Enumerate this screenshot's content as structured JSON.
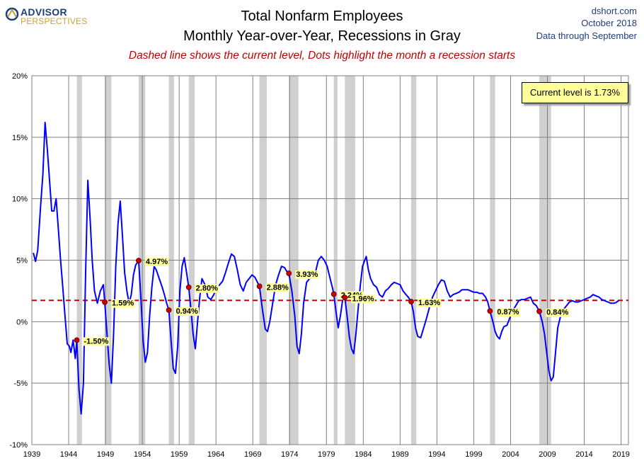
{
  "header": {
    "logo_top": "ADVISOR",
    "logo_bottom": "PERSPECTIVES",
    "title_line1": "Total Nonfarm Employees",
    "title_line2": "Monthly Year-over-Year, Recessions in Gray",
    "subtitle": "Dashed line shows the current level, Dots highlight the month a recession starts",
    "source": "dshort.com",
    "date": "October 2018",
    "data_through": "Data through September"
  },
  "current_level_label": "Current level is 1.73%",
  "colors": {
    "line": "#0000ff",
    "recession": "#d0d0d0",
    "dashed": "#cc0000",
    "dot": "#cc0000",
    "label_bg": "#ffff99",
    "title_blue": "#1f3f7a"
  },
  "chart_data": {
    "type": "line",
    "title": "Total Nonfarm Employees",
    "subtitle": "Monthly Year-over-Year, Recessions in Gray",
    "xlim": [
      1939,
      2020
    ],
    "ylim": [
      -10,
      20
    ],
    "x_ticks": [
      "1939",
      "1944",
      "1949",
      "1954",
      "1959",
      "1964",
      "1969",
      "1974",
      "1979",
      "1984",
      "1989",
      "1994",
      "1999",
      "2004",
      "2009",
      "2014",
      "2019"
    ],
    "y_ticks": [
      "-10%",
      "-5%",
      "0%",
      "5%",
      "10%",
      "15%",
      "20%"
    ],
    "y_tick_values": [
      -10,
      -5,
      0,
      5,
      10,
      15,
      20
    ],
    "grid": true,
    "current_level": 1.73,
    "recessions": [
      [
        1945.1,
        1945.8
      ],
      [
        1948.9,
        1949.8
      ],
      [
        1953.5,
        1954.4
      ],
      [
        1957.6,
        1958.3
      ],
      [
        1960.3,
        1961.1
      ],
      [
        1969.9,
        1970.9
      ],
      [
        1973.9,
        1975.2
      ],
      [
        1980.0,
        1980.5
      ],
      [
        1981.5,
        1982.9
      ],
      [
        1990.5,
        1991.2
      ],
      [
        2001.2,
        2001.9
      ],
      [
        2007.9,
        2009.5
      ]
    ],
    "recession_start_markers": [
      {
        "x": 1945.1,
        "y": -1.5,
        "label": "-1.50%"
      },
      {
        "x": 1948.9,
        "y": 1.59,
        "label": "1.59%"
      },
      {
        "x": 1953.5,
        "y": 4.97,
        "label": "4.97%"
      },
      {
        "x": 1957.6,
        "y": 0.94,
        "label": "0.94%"
      },
      {
        "x": 1960.3,
        "y": 2.8,
        "label": "2.80%"
      },
      {
        "x": 1969.9,
        "y": 2.88,
        "label": "2.88%"
      },
      {
        "x": 1973.9,
        "y": 3.93,
        "label": "3.93%"
      },
      {
        "x": 1980.0,
        "y": 2.24,
        "label": "2.24%"
      },
      {
        "x": 1981.5,
        "y": 1.96,
        "label": "1.96%"
      },
      {
        "x": 1990.5,
        "y": 1.63,
        "label": "1.63%"
      },
      {
        "x": 2001.2,
        "y": 0.87,
        "label": "0.87%"
      },
      {
        "x": 2007.9,
        "y": 0.84,
        "label": "0.84%"
      }
    ],
    "series": [
      {
        "values_xy": [
          [
            1939.2,
            5.6
          ],
          [
            1939.5,
            4.9
          ],
          [
            1939.8,
            5.8
          ],
          [
            1940.2,
            9.5
          ],
          [
            1940.5,
            12.0
          ],
          [
            1940.8,
            16.2
          ],
          [
            1941.1,
            14.0
          ],
          [
            1941.4,
            11.5
          ],
          [
            1941.7,
            9.0
          ],
          [
            1942.0,
            9.0
          ],
          [
            1942.3,
            10.0
          ],
          [
            1942.6,
            7.5
          ],
          [
            1942.9,
            5.0
          ],
          [
            1943.2,
            2.8
          ],
          [
            1943.5,
            0.5
          ],
          [
            1943.8,
            -1.8
          ],
          [
            1944.1,
            -2.0
          ],
          [
            1944.3,
            -2.5
          ],
          [
            1944.6,
            -1.5
          ],
          [
            1944.9,
            -3.0
          ],
          [
            1945.1,
            -1.5
          ],
          [
            1945.4,
            -5.5
          ],
          [
            1945.7,
            -7.5
          ],
          [
            1946.0,
            -5.0
          ],
          [
            1946.3,
            4.0
          ],
          [
            1946.6,
            11.5
          ],
          [
            1946.9,
            8.5
          ],
          [
            1947.2,
            5.0
          ],
          [
            1947.5,
            2.5
          ],
          [
            1947.9,
            1.5
          ],
          [
            1948.3,
            2.5
          ],
          [
            1948.7,
            3.0
          ],
          [
            1948.9,
            1.59
          ],
          [
            1949.2,
            -1.0
          ],
          [
            1949.5,
            -3.5
          ],
          [
            1949.8,
            -5.0
          ],
          [
            1950.1,
            -1.0
          ],
          [
            1950.4,
            4.5
          ],
          [
            1950.7,
            8.0
          ],
          [
            1951.0,
            9.8
          ],
          [
            1951.3,
            7.0
          ],
          [
            1951.6,
            4.0
          ],
          [
            1951.9,
            2.5
          ],
          [
            1952.2,
            1.5
          ],
          [
            1952.5,
            2.2
          ],
          [
            1952.8,
            3.8
          ],
          [
            1953.1,
            4.6
          ],
          [
            1953.5,
            4.97
          ],
          [
            1953.8,
            2.0
          ],
          [
            1954.1,
            -1.5
          ],
          [
            1954.4,
            -3.3
          ],
          [
            1954.7,
            -2.5
          ],
          [
            1955.0,
            0.5
          ],
          [
            1955.3,
            2.8
          ],
          [
            1955.6,
            4.5
          ],
          [
            1955.9,
            4.2
          ],
          [
            1956.3,
            3.5
          ],
          [
            1956.7,
            2.8
          ],
          [
            1957.0,
            2.2
          ],
          [
            1957.3,
            1.5
          ],
          [
            1957.6,
            0.94
          ],
          [
            1957.9,
            -1.5
          ],
          [
            1958.2,
            -3.8
          ],
          [
            1958.5,
            -4.2
          ],
          [
            1958.8,
            -2.0
          ],
          [
            1959.1,
            2.5
          ],
          [
            1959.4,
            4.5
          ],
          [
            1959.7,
            5.2
          ],
          [
            1960.0,
            4.0
          ],
          [
            1960.3,
            2.8
          ],
          [
            1960.6,
            1.0
          ],
          [
            1960.9,
            -1.0
          ],
          [
            1961.2,
            -2.2
          ],
          [
            1961.5,
            0.0
          ],
          [
            1961.8,
            2.0
          ],
          [
            1962.1,
            3.5
          ],
          [
            1962.5,
            3.0
          ],
          [
            1962.9,
            2.0
          ],
          [
            1963.3,
            1.8
          ],
          [
            1963.7,
            2.2
          ],
          [
            1964.1,
            2.8
          ],
          [
            1964.5,
            3.0
          ],
          [
            1964.9,
            3.3
          ],
          [
            1965.3,
            4.0
          ],
          [
            1965.7,
            4.8
          ],
          [
            1966.1,
            5.5
          ],
          [
            1966.5,
            5.3
          ],
          [
            1966.9,
            4.2
          ],
          [
            1967.3,
            3.0
          ],
          [
            1967.7,
            2.5
          ],
          [
            1968.1,
            3.2
          ],
          [
            1968.5,
            3.5
          ],
          [
            1968.9,
            3.8
          ],
          [
            1969.3,
            3.6
          ],
          [
            1969.9,
            2.88
          ],
          [
            1970.3,
            1.0
          ],
          [
            1970.7,
            -0.6
          ],
          [
            1971.0,
            -0.8
          ],
          [
            1971.3,
            0.0
          ],
          [
            1971.7,
            1.5
          ],
          [
            1972.1,
            3.0
          ],
          [
            1972.5,
            3.8
          ],
          [
            1972.9,
            4.5
          ],
          [
            1973.3,
            4.4
          ],
          [
            1973.6,
            4.1
          ],
          [
            1973.9,
            3.93
          ],
          [
            1974.3,
            2.5
          ],
          [
            1974.7,
            0.5
          ],
          [
            1975.0,
            -2.0
          ],
          [
            1975.3,
            -2.6
          ],
          [
            1975.6,
            -1.0
          ],
          [
            1975.9,
            1.5
          ],
          [
            1976.3,
            3.2
          ],
          [
            1976.7,
            3.5
          ],
          [
            1977.1,
            3.6
          ],
          [
            1977.5,
            4.0
          ],
          [
            1977.9,
            5.0
          ],
          [
            1978.3,
            5.3
          ],
          [
            1978.7,
            5.0
          ],
          [
            1979.1,
            4.5
          ],
          [
            1979.5,
            3.5
          ],
          [
            1979.8,
            2.8
          ],
          [
            1980.0,
            2.24
          ],
          [
            1980.3,
            0.8
          ],
          [
            1980.6,
            -0.5
          ],
          [
            1980.9,
            0.5
          ],
          [
            1981.2,
            1.8
          ],
          [
            1981.5,
            1.96
          ],
          [
            1981.8,
            0.5
          ],
          [
            1982.1,
            -1.2
          ],
          [
            1982.4,
            -2.2
          ],
          [
            1982.7,
            -2.6
          ],
          [
            1983.0,
            -1.0
          ],
          [
            1983.3,
            1.0
          ],
          [
            1983.6,
            3.0
          ],
          [
            1983.9,
            4.5
          ],
          [
            1984.2,
            5.0
          ],
          [
            1984.4,
            5.3
          ],
          [
            1984.7,
            4.2
          ],
          [
            1985.0,
            3.5
          ],
          [
            1985.4,
            3.0
          ],
          [
            1985.8,
            2.8
          ],
          [
            1986.2,
            2.2
          ],
          [
            1986.6,
            2.0
          ],
          [
            1987.0,
            2.5
          ],
          [
            1987.4,
            2.7
          ],
          [
            1987.8,
            3.0
          ],
          [
            1988.2,
            3.2
          ],
          [
            1988.6,
            3.1
          ],
          [
            1989.0,
            3.0
          ],
          [
            1989.4,
            2.5
          ],
          [
            1989.8,
            2.2
          ],
          [
            1990.1,
            2.0
          ],
          [
            1990.5,
            1.63
          ],
          [
            1990.8,
            0.8
          ],
          [
            1991.1,
            -0.5
          ],
          [
            1991.4,
            -1.2
          ],
          [
            1991.8,
            -1.3
          ],
          [
            1992.2,
            -0.5
          ],
          [
            1992.6,
            0.3
          ],
          [
            1993.0,
            1.2
          ],
          [
            1993.4,
            2.0
          ],
          [
            1993.8,
            2.5
          ],
          [
            1994.2,
            3.0
          ],
          [
            1994.6,
            3.4
          ],
          [
            1995.0,
            3.3
          ],
          [
            1995.4,
            2.5
          ],
          [
            1995.8,
            2.0
          ],
          [
            1996.2,
            2.2
          ],
          [
            1996.6,
            2.3
          ],
          [
            1997.0,
            2.4
          ],
          [
            1997.4,
            2.6
          ],
          [
            1997.8,
            2.6
          ],
          [
            1998.2,
            2.6
          ],
          [
            1998.6,
            2.5
          ],
          [
            1999.0,
            2.4
          ],
          [
            1999.4,
            2.4
          ],
          [
            1999.8,
            2.3
          ],
          [
            2000.2,
            2.3
          ],
          [
            2000.6,
            2.0
          ],
          [
            2000.9,
            1.6
          ],
          [
            2001.2,
            0.87
          ],
          [
            2001.6,
            0.0
          ],
          [
            2001.9,
            -0.8
          ],
          [
            2002.2,
            -1.2
          ],
          [
            2002.5,
            -1.4
          ],
          [
            2002.8,
            -0.8
          ],
          [
            2003.1,
            -0.4
          ],
          [
            2003.5,
            -0.3
          ],
          [
            2003.9,
            0.3
          ],
          [
            2004.3,
            0.9
          ],
          [
            2004.7,
            1.3
          ],
          [
            2005.1,
            1.7
          ],
          [
            2005.5,
            1.8
          ],
          [
            2005.9,
            1.8
          ],
          [
            2006.3,
            1.9
          ],
          [
            2006.7,
            2.0
          ],
          [
            2007.1,
            1.5
          ],
          [
            2007.5,
            1.3
          ],
          [
            2007.9,
            0.84
          ],
          [
            2008.3,
            0.0
          ],
          [
            2008.6,
            -1.0
          ],
          [
            2008.9,
            -2.5
          ],
          [
            2009.2,
            -4.0
          ],
          [
            2009.5,
            -4.8
          ],
          [
            2009.8,
            -4.5
          ],
          [
            2010.1,
            -2.5
          ],
          [
            2010.4,
            -0.5
          ],
          [
            2010.8,
            0.5
          ],
          [
            2011.2,
            1.0
          ],
          [
            2011.6,
            1.3
          ],
          [
            2012.0,
            1.6
          ],
          [
            2012.4,
            1.7
          ],
          [
            2012.8,
            1.6
          ],
          [
            2013.2,
            1.6
          ],
          [
            2013.6,
            1.7
          ],
          [
            2014.0,
            1.8
          ],
          [
            2014.4,
            1.9
          ],
          [
            2014.8,
            2.0
          ],
          [
            2015.2,
            2.2
          ],
          [
            2015.6,
            2.1
          ],
          [
            2016.0,
            2.0
          ],
          [
            2016.4,
            1.8
          ],
          [
            2016.8,
            1.7
          ],
          [
            2017.2,
            1.6
          ],
          [
            2017.6,
            1.5
          ],
          [
            2018.0,
            1.5
          ],
          [
            2018.3,
            1.55
          ],
          [
            2018.7,
            1.73
          ]
        ]
      }
    ]
  }
}
